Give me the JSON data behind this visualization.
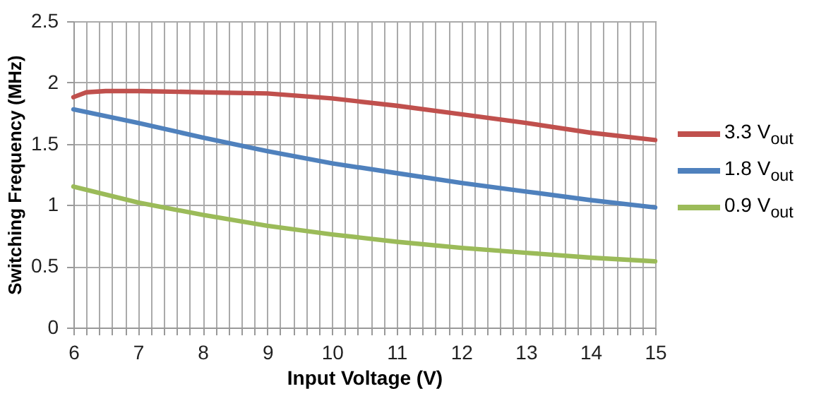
{
  "chart_data": {
    "type": "line",
    "xlabel": "Input Voltage (V)",
    "ylabel": "Switching Frequency (MHz)",
    "xlim": [
      6,
      15
    ],
    "ylim": [
      0,
      2.5
    ],
    "xticks": [
      6,
      {
        "value": 6.2,
        "label": null
      },
      {
        "value": 6.4,
        "label": null
      },
      {
        "value": 6.6,
        "label": null
      },
      {
        "value": 6.8,
        "label": null
      },
      7,
      {
        "value": 7.2,
        "label": null
      },
      {
        "value": 7.4,
        "label": null
      },
      {
        "value": 7.6,
        "label": null
      },
      {
        "value": 7.8,
        "label": null
      },
      8,
      {
        "value": 8.2,
        "label": null
      },
      {
        "value": 8.4,
        "label": null
      },
      {
        "value": 8.6,
        "label": null
      },
      {
        "value": 8.8,
        "label": null
      },
      9,
      {
        "value": 9.2,
        "label": null
      },
      {
        "value": 9.4,
        "label": null
      },
      {
        "value": 9.6,
        "label": null
      },
      {
        "value": 9.8,
        "label": null
      },
      10,
      {
        "value": 10.2,
        "label": null
      },
      {
        "value": 10.4,
        "label": null
      },
      {
        "value": 10.6,
        "label": null
      },
      {
        "value": 10.8,
        "label": null
      },
      11,
      {
        "value": 11.2,
        "label": null
      },
      {
        "value": 11.4,
        "label": null
      },
      {
        "value": 11.6,
        "label": null
      },
      {
        "value": 11.8,
        "label": null
      },
      12,
      {
        "value": 12.2,
        "label": null
      },
      {
        "value": 12.4,
        "label": null
      },
      {
        "value": 12.6,
        "label": null
      },
      {
        "value": 12.8,
        "label": null
      },
      13,
      {
        "value": 13.2,
        "label": null
      },
      {
        "value": 13.4,
        "label": null
      },
      {
        "value": 13.6,
        "label": null
      },
      {
        "value": 13.8,
        "label": null
      },
      14,
      {
        "value": 14.2,
        "label": null
      },
      {
        "value": 14.4,
        "label": null
      },
      {
        "value": 14.6,
        "label": null
      },
      {
        "value": 14.8,
        "label": null
      },
      15
    ],
    "yticks": [
      0,
      0.5,
      1,
      1.5,
      2,
      2.5
    ],
    "grid": true,
    "legend": "right",
    "marker": "none",
    "line_style": "solid",
    "series": [
      {
        "name": "3.3 V$_{out}$",
        "color": "#c0504d",
        "x": [
          6,
          6.2,
          6.5,
          7,
          8,
          9,
          10,
          11,
          12,
          13,
          14,
          15
        ],
        "values": [
          1.88,
          1.92,
          1.93,
          1.93,
          1.92,
          1.91,
          1.87,
          1.81,
          1.74,
          1.67,
          1.59,
          1.53
        ]
      },
      {
        "name": "1.8 V$_{out}$",
        "color": "#4f81bd",
        "x": [
          6,
          7,
          8,
          9,
          10,
          11,
          12,
          13,
          14,
          15
        ],
        "values": [
          1.78,
          1.67,
          1.55,
          1.44,
          1.34,
          1.26,
          1.18,
          1.11,
          1.04,
          0.98
        ]
      },
      {
        "name": "0.9 V$_{out}$",
        "color": "#9bbb59",
        "x": [
          6,
          7,
          8,
          9,
          10,
          11,
          12,
          13,
          14,
          15
        ],
        "values": [
          1.15,
          1.02,
          0.92,
          0.83,
          0.76,
          0.7,
          0.65,
          0.61,
          0.57,
          0.54
        ]
      }
    ]
  }
}
